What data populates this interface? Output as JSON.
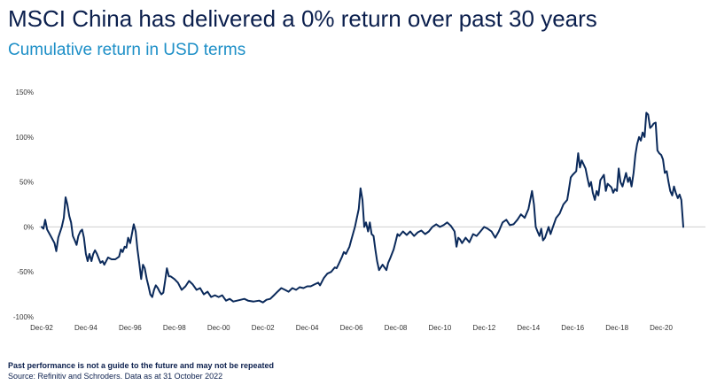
{
  "title": "MSCI China has delivered a 0% return over past 30 years",
  "subtitle": "Cumulative return in USD terms",
  "footnote": "Past performance is not a guide to the future and may not be repeated",
  "source": "Source: Refinitiv and Schroders. Data as at 31 October 2022",
  "colors": {
    "line": "#0b2a5b",
    "title": "#0b1f4d",
    "subtitle": "#1d8fc7",
    "zero_line": "#d0d0d0"
  },
  "chart_data": {
    "type": "line",
    "title": "MSCI China has delivered a 0% return over past 30 years",
    "subtitle": "Cumulative return in USD terms",
    "y_unit": "%",
    "ylim": [
      -100,
      150
    ],
    "xlim": [
      1992.8,
      2022.92
    ],
    "y_ticks": [
      {
        "value": 150,
        "label": "150%"
      },
      {
        "value": 100,
        "label": "100%"
      },
      {
        "value": 50,
        "label": "50%"
      },
      {
        "value": 0,
        "label": "0%"
      },
      {
        "value": -50,
        "label": "-50%"
      },
      {
        "value": -100,
        "label": "-100%"
      }
    ],
    "x_ticks": [
      {
        "value": 1992.92,
        "label": "Dec-92"
      },
      {
        "value": 1994.92,
        "label": "Dec-94"
      },
      {
        "value": 1996.92,
        "label": "Dec-96"
      },
      {
        "value": 1998.92,
        "label": "Dec-98"
      },
      {
        "value": 2000.92,
        "label": "Dec-00"
      },
      {
        "value": 2002.92,
        "label": "Dec-02"
      },
      {
        "value": 2004.92,
        "label": "Dec-04"
      },
      {
        "value": 2006.92,
        "label": "Dec-06"
      },
      {
        "value": 2008.92,
        "label": "Dec-08"
      },
      {
        "value": 2010.92,
        "label": "Dec-10"
      },
      {
        "value": 2012.92,
        "label": "Dec-12"
      },
      {
        "value": 2014.92,
        "label": "Dec-14"
      },
      {
        "value": 2016.92,
        "label": "Dec-16"
      },
      {
        "value": 2018.92,
        "label": "Dec-18"
      },
      {
        "value": 2020.92,
        "label": "Dec-20"
      }
    ],
    "grid": false,
    "zero_line": true,
    "legend": "none",
    "series": [
      {
        "points": [
          [
            1992.92,
            0
          ],
          [
            1993.0,
            -2
          ],
          [
            1993.08,
            8
          ],
          [
            1993.17,
            -3
          ],
          [
            1993.33,
            -10
          ],
          [
            1993.5,
            -18
          ],
          [
            1993.58,
            -27
          ],
          [
            1993.67,
            -12
          ],
          [
            1993.83,
            0
          ],
          [
            1993.92,
            10
          ],
          [
            1994.0,
            33
          ],
          [
            1994.08,
            25
          ],
          [
            1994.17,
            12
          ],
          [
            1994.25,
            5
          ],
          [
            1994.33,
            -10
          ],
          [
            1994.42,
            -15
          ],
          [
            1994.5,
            -20
          ],
          [
            1994.58,
            -10
          ],
          [
            1994.67,
            -5
          ],
          [
            1994.75,
            -3
          ],
          [
            1994.83,
            -12
          ],
          [
            1994.92,
            -30
          ],
          [
            1995.0,
            -38
          ],
          [
            1995.08,
            -30
          ],
          [
            1995.17,
            -38
          ],
          [
            1995.25,
            -30
          ],
          [
            1995.33,
            -26
          ],
          [
            1995.42,
            -30
          ],
          [
            1995.5,
            -35
          ],
          [
            1995.58,
            -40
          ],
          [
            1995.67,
            -38
          ],
          [
            1995.75,
            -42
          ],
          [
            1995.92,
            -34
          ],
          [
            1996.08,
            -36
          ],
          [
            1996.25,
            -36
          ],
          [
            1996.42,
            -33
          ],
          [
            1996.5,
            -25
          ],
          [
            1996.58,
            -28
          ],
          [
            1996.67,
            -22
          ],
          [
            1996.75,
            -23
          ],
          [
            1996.83,
            -12
          ],
          [
            1996.92,
            -18
          ],
          [
            1997.08,
            3
          ],
          [
            1997.17,
            -5
          ],
          [
            1997.25,
            -25
          ],
          [
            1997.33,
            -40
          ],
          [
            1997.42,
            -58
          ],
          [
            1997.5,
            -42
          ],
          [
            1997.58,
            -46
          ],
          [
            1997.67,
            -58
          ],
          [
            1997.75,
            -66
          ],
          [
            1997.83,
            -75
          ],
          [
            1997.92,
            -78
          ],
          [
            1998.0,
            -70
          ],
          [
            1998.08,
            -65
          ],
          [
            1998.17,
            -68
          ],
          [
            1998.25,
            -72
          ],
          [
            1998.33,
            -75
          ],
          [
            1998.42,
            -73
          ],
          [
            1998.5,
            -60
          ],
          [
            1998.58,
            -46
          ],
          [
            1998.67,
            -55
          ],
          [
            1998.75,
            -55
          ],
          [
            1998.92,
            -58
          ],
          [
            1999.08,
            -62
          ],
          [
            1999.25,
            -70
          ],
          [
            1999.42,
            -66
          ],
          [
            1999.58,
            -60
          ],
          [
            1999.75,
            -64
          ],
          [
            1999.92,
            -70
          ],
          [
            2000.08,
            -68
          ],
          [
            2000.25,
            -75
          ],
          [
            2000.42,
            -72
          ],
          [
            2000.58,
            -78
          ],
          [
            2000.75,
            -76
          ],
          [
            2000.92,
            -78
          ],
          [
            2001.08,
            -76
          ],
          [
            2001.25,
            -82
          ],
          [
            2001.42,
            -80
          ],
          [
            2001.58,
            -83
          ],
          [
            2001.75,
            -82
          ],
          [
            2001.92,
            -81
          ],
          [
            2002.08,
            -80
          ],
          [
            2002.25,
            -82
          ],
          [
            2002.5,
            -83
          ],
          [
            2002.75,
            -82
          ],
          [
            2002.92,
            -84
          ],
          [
            2003.08,
            -81
          ],
          [
            2003.25,
            -80
          ],
          [
            2003.42,
            -76
          ],
          [
            2003.58,
            -72
          ],
          [
            2003.75,
            -68
          ],
          [
            2003.92,
            -70
          ],
          [
            2004.08,
            -72
          ],
          [
            2004.25,
            -68
          ],
          [
            2004.42,
            -70
          ],
          [
            2004.58,
            -67
          ],
          [
            2004.75,
            -68
          ],
          [
            2004.92,
            -66
          ],
          [
            2005.08,
            -66
          ],
          [
            2005.25,
            -64
          ],
          [
            2005.42,
            -62
          ],
          [
            2005.5,
            -65
          ],
          [
            2005.67,
            -57
          ],
          [
            2005.83,
            -52
          ],
          [
            2006.0,
            -50
          ],
          [
            2006.17,
            -45
          ],
          [
            2006.25,
            -46
          ],
          [
            2006.33,
            -42
          ],
          [
            2006.5,
            -33
          ],
          [
            2006.58,
            -28
          ],
          [
            2006.67,
            -30
          ],
          [
            2006.83,
            -22
          ],
          [
            2006.92,
            -14
          ],
          [
            2007.08,
            0
          ],
          [
            2007.25,
            20
          ],
          [
            2007.33,
            43
          ],
          [
            2007.42,
            30
          ],
          [
            2007.5,
            0
          ],
          [
            2007.58,
            5
          ],
          [
            2007.67,
            -5
          ],
          [
            2007.75,
            5
          ],
          [
            2007.83,
            -8
          ],
          [
            2007.92,
            -10
          ],
          [
            2008.0,
            -25
          ],
          [
            2008.08,
            -38
          ],
          [
            2008.17,
            -48
          ],
          [
            2008.33,
            -42
          ],
          [
            2008.5,
            -48
          ],
          [
            2008.58,
            -40
          ],
          [
            2008.67,
            -35
          ],
          [
            2008.83,
            -25
          ],
          [
            2008.92,
            -16
          ],
          [
            2009.0,
            -8
          ],
          [
            2009.08,
            -10
          ],
          [
            2009.25,
            -5
          ],
          [
            2009.42,
            -9
          ],
          [
            2009.58,
            -5
          ],
          [
            2009.75,
            -10
          ],
          [
            2009.92,
            -6
          ],
          [
            2010.08,
            -4
          ],
          [
            2010.25,
            -8
          ],
          [
            2010.42,
            -5
          ],
          [
            2010.58,
            0
          ],
          [
            2010.75,
            3
          ],
          [
            2010.92,
            0
          ],
          [
            2011.08,
            2
          ],
          [
            2011.25,
            5
          ],
          [
            2011.42,
            1
          ],
          [
            2011.58,
            -5
          ],
          [
            2011.67,
            -22
          ],
          [
            2011.75,
            -12
          ],
          [
            2011.83,
            -14
          ],
          [
            2011.92,
            -18
          ],
          [
            2012.08,
            -12
          ],
          [
            2012.25,
            -17
          ],
          [
            2012.42,
            -8
          ],
          [
            2012.58,
            -10
          ],
          [
            2012.75,
            -5
          ],
          [
            2012.92,
            0
          ],
          [
            2013.08,
            -2
          ],
          [
            2013.25,
            -5
          ],
          [
            2013.42,
            -12
          ],
          [
            2013.58,
            -5
          ],
          [
            2013.75,
            5
          ],
          [
            2013.92,
            8
          ],
          [
            2014.08,
            2
          ],
          [
            2014.25,
            3
          ],
          [
            2014.42,
            8
          ],
          [
            2014.58,
            14
          ],
          [
            2014.67,
            12
          ],
          [
            2014.75,
            10
          ],
          [
            2014.92,
            20
          ],
          [
            2015.08,
            40
          ],
          [
            2015.17,
            25
          ],
          [
            2015.25,
            0
          ],
          [
            2015.33,
            -5
          ],
          [
            2015.42,
            -10
          ],
          [
            2015.5,
            -2
          ],
          [
            2015.58,
            -15
          ],
          [
            2015.67,
            -12
          ],
          [
            2015.83,
            0
          ],
          [
            2015.92,
            -8
          ],
          [
            2016.0,
            -2
          ],
          [
            2016.17,
            10
          ],
          [
            2016.33,
            15
          ],
          [
            2016.5,
            25
          ],
          [
            2016.67,
            30
          ],
          [
            2016.75,
            42
          ],
          [
            2016.83,
            55
          ],
          [
            2016.92,
            58
          ],
          [
            2017.08,
            62
          ],
          [
            2017.17,
            82
          ],
          [
            2017.25,
            66
          ],
          [
            2017.33,
            74
          ],
          [
            2017.5,
            65
          ],
          [
            2017.58,
            55
          ],
          [
            2017.67,
            45
          ],
          [
            2017.75,
            50
          ],
          [
            2017.83,
            38
          ],
          [
            2017.92,
            30
          ],
          [
            2018.0,
            40
          ],
          [
            2018.08,
            35
          ],
          [
            2018.17,
            52
          ],
          [
            2018.33,
            58
          ],
          [
            2018.42,
            40
          ],
          [
            2018.5,
            48
          ],
          [
            2018.67,
            44
          ],
          [
            2018.75,
            38
          ],
          [
            2018.83,
            42
          ],
          [
            2018.92,
            40
          ],
          [
            2019.0,
            65
          ],
          [
            2019.08,
            50
          ],
          [
            2019.17,
            45
          ],
          [
            2019.33,
            60
          ],
          [
            2019.42,
            50
          ],
          [
            2019.5,
            55
          ],
          [
            2019.58,
            45
          ],
          [
            2019.67,
            60
          ],
          [
            2019.75,
            80
          ],
          [
            2019.83,
            92
          ],
          [
            2019.92,
            100
          ],
          [
            2020.0,
            96
          ],
          [
            2020.08,
            105
          ],
          [
            2020.17,
            100
          ],
          [
            2020.25,
            127
          ],
          [
            2020.33,
            125
          ],
          [
            2020.42,
            110
          ],
          [
            2020.5,
            112
          ],
          [
            2020.58,
            115
          ],
          [
            2020.67,
            116
          ],
          [
            2020.75,
            85
          ],
          [
            2020.83,
            82
          ],
          [
            2020.92,
            80
          ],
          [
            2021.0,
            75
          ],
          [
            2021.08,
            60
          ],
          [
            2021.17,
            62
          ],
          [
            2021.25,
            50
          ],
          [
            2021.33,
            40
          ],
          [
            2021.42,
            35
          ],
          [
            2021.5,
            45
          ],
          [
            2021.58,
            38
          ],
          [
            2021.67,
            32
          ],
          [
            2021.75,
            36
          ],
          [
            2021.83,
            30
          ],
          [
            2021.92,
            0
          ]
        ]
      }
    ]
  }
}
